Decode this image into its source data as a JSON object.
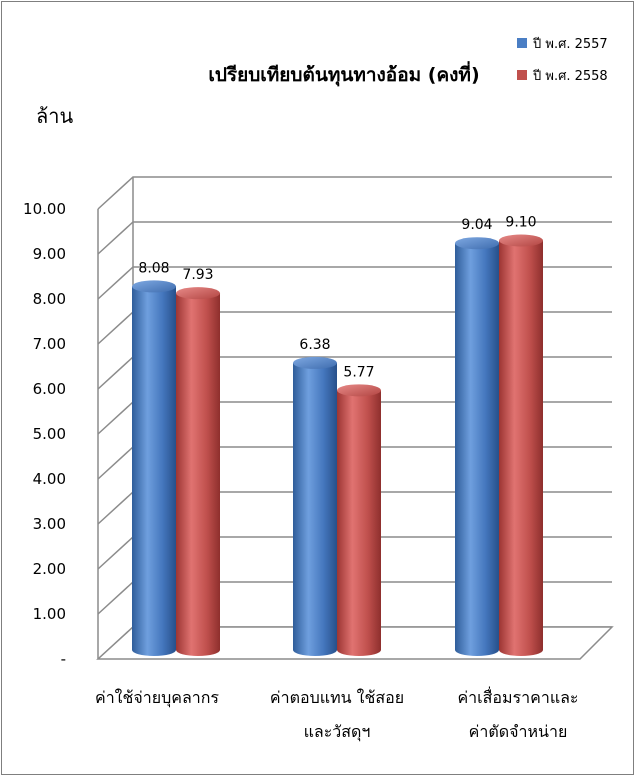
{
  "chart_data": {
    "type": "bar",
    "title": "เปรียบเทียบต้นทุนทางอ้อม (คงที่)",
    "ylabel": "ล้าน",
    "categories": [
      [
        "ค่าใช้จ่ายบุคลากร"
      ],
      [
        "ค่าตอบแทน ใช้สอย",
        "และวัสดุฯ"
      ],
      [
        "ค่าเสื่อมราคาและ",
        "ค่าตัดจำหน่าย"
      ]
    ],
    "series": [
      {
        "name": "ปี พ.ศ. 2557",
        "color": "#4a7ec4",
        "values": [
          8.08,
          6.38,
          9.04
        ],
        "labels": [
          "8.08",
          "6.38",
          "9.04"
        ]
      },
      {
        "name": "ปี พ.ศ. 2558",
        "color": "#c0504d",
        "values": [
          7.93,
          5.77,
          9.1
        ],
        "labels": [
          "7.93",
          "5.77",
          "9.10"
        ]
      }
    ],
    "yticks": [
      "-",
      "1.00",
      "2.00",
      "3.00",
      "4.00",
      "5.00",
      "6.00",
      "7.00",
      "8.00",
      "9.00",
      "10.00"
    ],
    "ylim": [
      0,
      10
    ],
    "grid": true,
    "legend_position": "top-right",
    "style": "3d-cylinder"
  }
}
